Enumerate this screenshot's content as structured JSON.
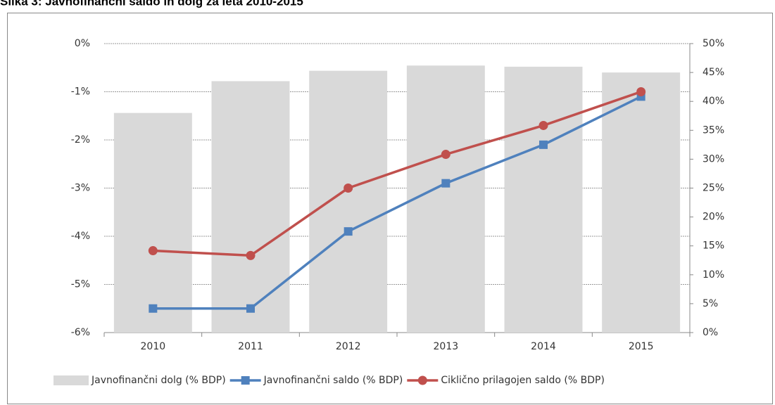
{
  "chart_data": {
    "type": "bar_line",
    "title": "Slika 3: Javnofinančni saldo in dolg za leta 2010-2015",
    "categories": [
      "2010",
      "2011",
      "2012",
      "2013",
      "2014",
      "2015"
    ],
    "series": [
      {
        "name": "Javnofinančni dolg (% BDP)",
        "type": "bar",
        "axis": "y2",
        "color": "#d9d9d9",
        "values": [
          38,
          43.5,
          45.3,
          46.2,
          46,
          45
        ]
      },
      {
        "name": "Javnofinančni saldo (% BDP)",
        "type": "line",
        "axis": "y",
        "color": "#4f81bd",
        "marker": "square",
        "values": [
          -5.5,
          -5.5,
          -3.9,
          -2.9,
          -2.1,
          -1.1
        ]
      },
      {
        "name": "Ciklično prilagojen saldo (% BDP)",
        "type": "line",
        "axis": "y",
        "color": "#c0504d",
        "marker": "circle",
        "values": [
          -4.3,
          -4.4,
          -3.0,
          -2.3,
          -1.7,
          -1.0
        ]
      }
    ],
    "ylim": [
      -6,
      0
    ],
    "yticks": [
      {
        "value": 0,
        "label": "0%"
      },
      {
        "value": -1,
        "label": "-1%"
      },
      {
        "value": -2,
        "label": "-2%"
      },
      {
        "value": -3,
        "label": "-3%"
      },
      {
        "value": -4,
        "label": "-4%"
      },
      {
        "value": -5,
        "label": "-5%"
      },
      {
        "value": -6,
        "label": "-6%"
      }
    ],
    "y2lim": [
      0,
      50
    ],
    "y2ticks": [
      {
        "value": 0,
        "label": "0%"
      },
      {
        "value": 5,
        "label": "5%"
      },
      {
        "value": 10,
        "label": "10%"
      },
      {
        "value": 15,
        "label": "15%"
      },
      {
        "value": 20,
        "label": "20%"
      },
      {
        "value": 25,
        "label": "25%"
      },
      {
        "value": 30,
        "label": "30%"
      },
      {
        "value": 35,
        "label": "35%"
      },
      {
        "value": 40,
        "label": "40%"
      },
      {
        "value": 45,
        "label": "45%"
      },
      {
        "value": 50,
        "label": "50%"
      }
    ],
    "grid": true,
    "legend": "bottom"
  }
}
